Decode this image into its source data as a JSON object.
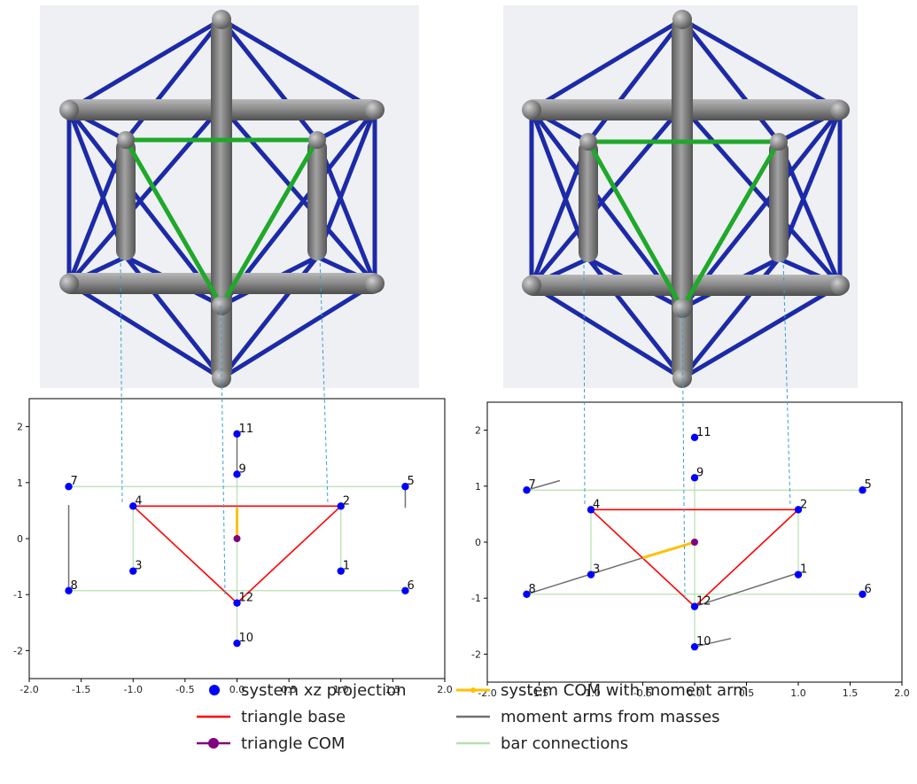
{
  "chart_data": [
    {
      "type": "scatter",
      "panel": "left",
      "xlim": [
        -2.0,
        2.0
      ],
      "ylim": [
        -2.5,
        2.5
      ],
      "xticks": [
        "-2.0",
        "-1.5",
        "-1.0",
        "-0.5",
        "0.0",
        "0.5",
        "1.0",
        "1.5",
        "2.0"
      ],
      "yticks": [
        "2",
        "1",
        "0",
        "-1",
        "-2"
      ],
      "points": [
        {
          "label": "1",
          "x": 1.0,
          "y": -0.58
        },
        {
          "label": "2",
          "x": 1.0,
          "y": 0.58
        },
        {
          "label": "3",
          "x": -1.0,
          "y": -0.58
        },
        {
          "label": "4",
          "x": -1.0,
          "y": 0.58
        },
        {
          "label": "5",
          "x": 1.62,
          "y": 0.93
        },
        {
          "label": "6",
          "x": 1.62,
          "y": -0.93
        },
        {
          "label": "7",
          "x": -1.62,
          "y": 0.93
        },
        {
          "label": "8",
          "x": -1.62,
          "y": -0.93
        },
        {
          "label": "9",
          "x": 0.0,
          "y": 1.15
        },
        {
          "label": "10",
          "x": 0.0,
          "y": -1.87
        },
        {
          "label": "11",
          "x": 0.0,
          "y": 1.87
        },
        {
          "label": "12",
          "x": 0.0,
          "y": -1.15
        }
      ],
      "triangle_com": {
        "x": 0.0,
        "y": 0.0
      },
      "system_com": {
        "x": 0.0,
        "y": 0.55
      },
      "triangle": [
        "4",
        "2",
        "12"
      ],
      "moment_arms": [
        {
          "x1": -1.62,
          "y1": -0.93,
          "x2": -1.62,
          "y2": 0.6
        },
        {
          "x1": 1.62,
          "y1": 0.93,
          "x2": 1.62,
          "y2": 0.55
        },
        {
          "x1": 0.0,
          "y1": 1.15,
          "x2": 0.0,
          "y2": 1.85
        }
      ]
    },
    {
      "type": "scatter",
      "panel": "right",
      "xlim": [
        -2.0,
        2.0
      ],
      "ylim": [
        -2.5,
        2.5
      ],
      "xticks": [
        "-2.0",
        "-1.5",
        "-1.0",
        "-0.5",
        "0.0",
        "0.5",
        "1.0",
        "1.5",
        "2.0"
      ],
      "yticks": [
        "2",
        "1",
        "0",
        "-1",
        "-2"
      ],
      "points": [
        {
          "label": "1",
          "x": 1.0,
          "y": -0.58
        },
        {
          "label": "2",
          "x": 1.0,
          "y": 0.58
        },
        {
          "label": "3",
          "x": -1.0,
          "y": -0.58
        },
        {
          "label": "4",
          "x": -1.0,
          "y": 0.58
        },
        {
          "label": "5",
          "x": 1.62,
          "y": 0.93
        },
        {
          "label": "6",
          "x": 1.62,
          "y": -0.93
        },
        {
          "label": "7",
          "x": -1.62,
          "y": 0.93
        },
        {
          "label": "8",
          "x": -1.62,
          "y": -0.93
        },
        {
          "label": "9",
          "x": 0.0,
          "y": 1.15
        },
        {
          "label": "10",
          "x": 0.0,
          "y": -1.87
        },
        {
          "label": "11",
          "x": 0.0,
          "y": 1.87
        },
        {
          "label": "12",
          "x": 0.0,
          "y": -1.15
        }
      ],
      "triangle_com": {
        "x": 0.0,
        "y": 0.0
      },
      "system_com": {
        "x": -0.5,
        "y": -0.28
      },
      "triangle": [
        "4",
        "2",
        "12"
      ],
      "moment_arms": [
        {
          "x1": -1.62,
          "y1": -0.93,
          "x2": -0.5,
          "y2": -0.28
        },
        {
          "x1": 0.0,
          "y1": -1.15,
          "x2": 1.0,
          "y2": -0.55
        },
        {
          "x1": -1.62,
          "y1": 0.93,
          "x2": -1.3,
          "y2": 1.1
        },
        {
          "x1": 0.0,
          "y1": -1.87,
          "x2": 0.35,
          "y2": -1.72
        }
      ]
    }
  ],
  "legend": [
    {
      "label": "system xz projection",
      "kind": "dot",
      "color": "#0000ff"
    },
    {
      "label": "triangle base",
      "kind": "line",
      "color": "#ff0000"
    },
    {
      "label": "triangle COM",
      "kind": "line-dot",
      "color": "#800080"
    },
    {
      "label": "system COM with moment arm",
      "kind": "line-dot-small",
      "color": "#ffc000"
    },
    {
      "label": "moment arms from masses",
      "kind": "line",
      "color": "#707070"
    },
    {
      "label": "bar connections",
      "kind": "line",
      "color": "#b8dfb0"
    }
  ],
  "colors": {
    "point": "#0000ff",
    "triangle": "#ff0000",
    "triangle_com": "#800080",
    "system_com": "#ffc000",
    "moment_arm": "#707070",
    "bar": "#b8dfb0",
    "projection": "#3aa0d0",
    "strut": "#1c2aa8",
    "rod": "#8a8a8a",
    "triangle_rod": "#1fa82a"
  }
}
